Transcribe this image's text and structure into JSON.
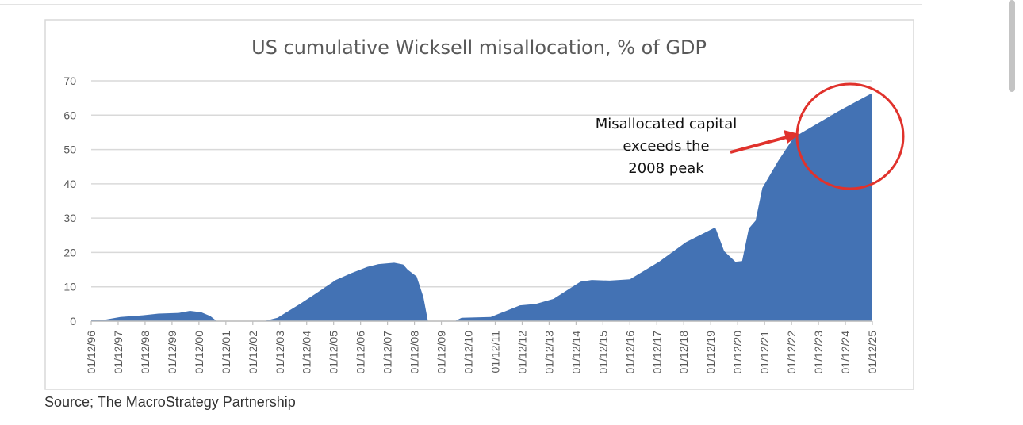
{
  "chart_data": {
    "type": "area",
    "title": "US cumulative Wicksell misallocation, % of GDP",
    "xlabel": "",
    "ylabel": "",
    "ylim": [
      0,
      70
    ],
    "y_ticks": [
      0,
      10,
      20,
      30,
      40,
      50,
      60,
      70
    ],
    "xlim": [
      "1996-12",
      "2025-12"
    ],
    "x_tick_labels": [
      "01/12/96",
      "01/12/97",
      "01/12/98",
      "01/12/99",
      "01/12/00",
      "01/12/01",
      "01/12/02",
      "01/12/03",
      "01/12/04",
      "01/12/05",
      "01/12/06",
      "01/12/07",
      "01/12/08",
      "01/12/09",
      "01/12/10",
      "01/12/11",
      "01/12/12",
      "01/12/13",
      "01/12/14",
      "01/12/15",
      "01/12/16",
      "01/12/17",
      "01/12/18",
      "01/12/19",
      "01/12/20",
      "01/12/21",
      "01/12/22",
      "01/12/23",
      "01/12/24",
      "01/12/25"
    ],
    "grid": true,
    "color": "#4372b4",
    "series": [
      {
        "points": [
          [
            "1996-12",
            0.3
          ],
          [
            "1997-06",
            0.4
          ],
          [
            "1998-01",
            1.2
          ],
          [
            "1998-11",
            1.7
          ],
          [
            "1999-06",
            2.2
          ],
          [
            "2000-03",
            2.4
          ],
          [
            "2000-08",
            3.0
          ],
          [
            "2001-01",
            2.6
          ],
          [
            "2001-05",
            1.5
          ],
          [
            "2001-08",
            0
          ],
          [
            "2003-05",
            0
          ],
          [
            "2003-11",
            1
          ],
          [
            "2004-09",
            5
          ],
          [
            "2005-04",
            8
          ],
          [
            "2006-01",
            12
          ],
          [
            "2006-08",
            14
          ],
          [
            "2007-03",
            15.8
          ],
          [
            "2007-08",
            16.6
          ],
          [
            "2008-03",
            17
          ],
          [
            "2008-07",
            16.5
          ],
          [
            "2008-09",
            15
          ],
          [
            "2009-01",
            13
          ],
          [
            "2009-04",
            7
          ],
          [
            "2009-06",
            0
          ],
          [
            "2010-06",
            0
          ],
          [
            "2010-09",
            1
          ],
          [
            "2011-10",
            1.2
          ],
          [
            "2012-11",
            4.6
          ],
          [
            "2013-06",
            5
          ],
          [
            "2014-02",
            6.5
          ],
          [
            "2015-02",
            11.5
          ],
          [
            "2015-07",
            12
          ],
          [
            "2016-03",
            11.8
          ],
          [
            "2016-12",
            12.2
          ],
          [
            "2018-01",
            17.3
          ],
          [
            "2019-01",
            23
          ],
          [
            "2020-02",
            27.3
          ],
          [
            "2020-06",
            20.4
          ],
          [
            "2020-11",
            17.3
          ],
          [
            "2021-02",
            17.5
          ],
          [
            "2021-05",
            27
          ],
          [
            "2021-08",
            29.3
          ],
          [
            "2021-11",
            38.8
          ],
          [
            "2022-06",
            46.6
          ],
          [
            "2023-01",
            53.5
          ],
          [
            "2024-09",
            61.2
          ],
          [
            "2025-12",
            66.5
          ]
        ]
      }
    ],
    "annotation": {
      "lines": [
        "Misallocated capital",
        "exceeds the",
        "2008 peak"
      ],
      "arrow_color": "#e0322c",
      "circle_color": "#e0322c"
    },
    "source": "Source; The MacroStrategy Partnership"
  }
}
